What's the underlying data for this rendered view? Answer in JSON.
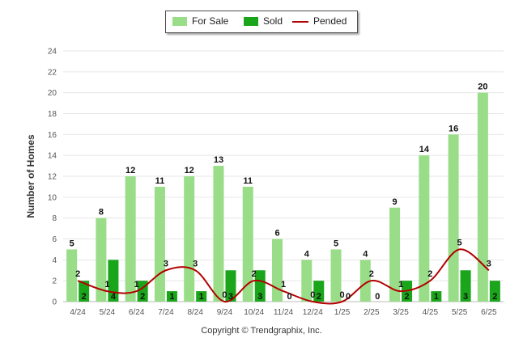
{
  "chart_data": {
    "type": "bar",
    "title": "",
    "xlabel": "",
    "ylabel": "Number of Homes",
    "ylim": [
      0,
      24
    ],
    "yticks": [
      0,
      2,
      4,
      6,
      8,
      10,
      12,
      14,
      16,
      18,
      20,
      22,
      24
    ],
    "grid": true,
    "legend_position": "top-center",
    "categories": [
      "4/24",
      "5/24",
      "6/24",
      "7/24",
      "8/24",
      "9/24",
      "10/24",
      "11/24",
      "12/24",
      "1/25",
      "2/25",
      "3/25",
      "4/25",
      "5/25",
      "6/25"
    ],
    "series": [
      {
        "name": "For Sale",
        "kind": "bar",
        "color": "#99dd88",
        "values": [
          5,
          8,
          12,
          11,
          12,
          13,
          11,
          6,
          4,
          5,
          4,
          9,
          14,
          16,
          20
        ]
      },
      {
        "name": "Sold",
        "kind": "bar",
        "color": "#1aa51a",
        "values": [
          2,
          4,
          2,
          1,
          1,
          3,
          3,
          0,
          2,
          0,
          0,
          2,
          1,
          3,
          2
        ]
      },
      {
        "name": "Pended",
        "kind": "line",
        "color": "#b30000",
        "values": [
          2,
          1,
          1,
          3,
          3,
          0,
          2,
          1,
          0,
          0,
          2,
          1,
          2,
          5,
          3
        ]
      }
    ]
  },
  "legend": {
    "items": [
      "For Sale",
      "Sold",
      "Pended"
    ]
  },
  "footer": {
    "copyright": "Copyright © Trendgraphix, Inc."
  }
}
